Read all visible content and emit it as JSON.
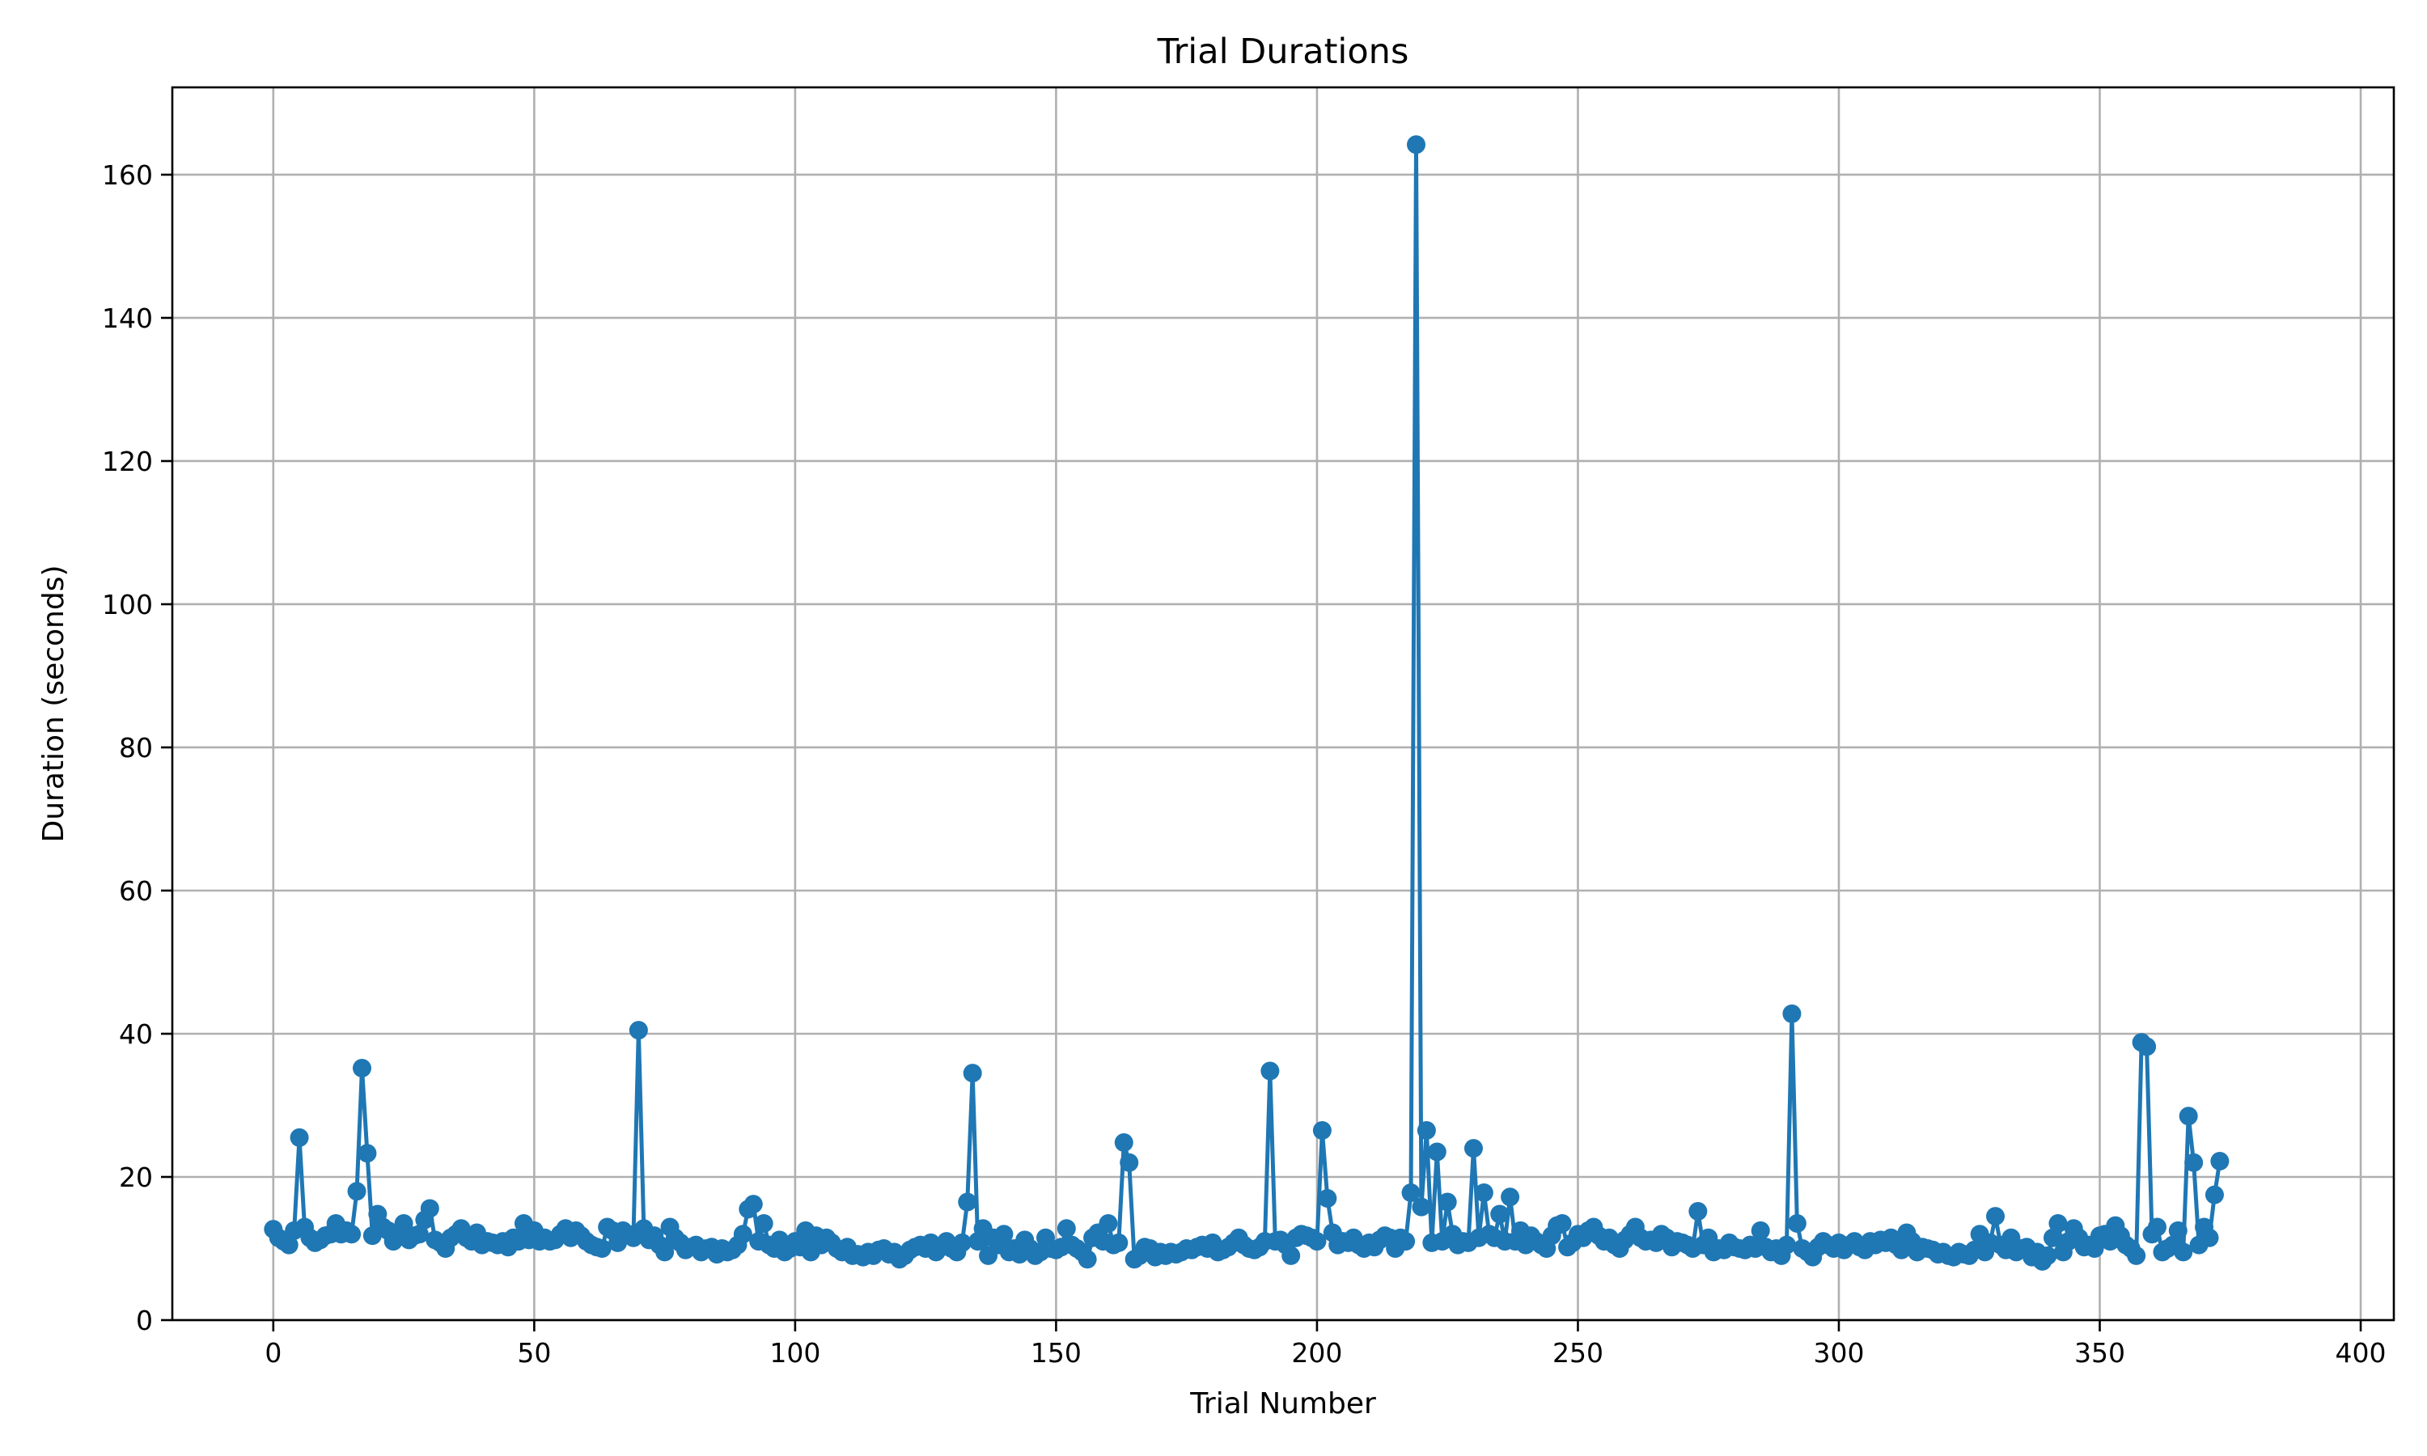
{
  "chart_data": {
    "type": "line",
    "title": "Trial Durations",
    "xlabel": "Trial Number",
    "ylabel": "Duration (seconds)",
    "xlim": [
      -19.35,
      406.35
    ],
    "ylim": [
      0,
      172.2
    ],
    "xticks": [
      0,
      50,
      100,
      150,
      200,
      250,
      300,
      350,
      400
    ],
    "yticks": [
      0,
      20,
      40,
      60,
      80,
      100,
      120,
      140,
      160
    ],
    "grid": true,
    "marker": "circle",
    "color": "#1f77b4",
    "series": [
      {
        "values": [
          12.7,
          11.5,
          11.0,
          10.5,
          12.5,
          25.5,
          13.0,
          11.5,
          10.8,
          11.2,
          11.8,
          12.0,
          13.5,
          12.0,
          12.5,
          12.0,
          18.0,
          35.2,
          23.3,
          11.8,
          14.8,
          13.0,
          12.5,
          11.0,
          12.0,
          13.5,
          11.2,
          11.8,
          12.0,
          14.0,
          15.6,
          11.2,
          10.8,
          10.0,
          11.5,
          12.0,
          12.8,
          11.5,
          11.0,
          12.2,
          10.5,
          11.0,
          10.8,
          10.5,
          11.0,
          10.2,
          11.5,
          11.0,
          13.5,
          11.2,
          12.5,
          11.0,
          11.5,
          11.0,
          11.2,
          12.0,
          12.8,
          11.5,
          12.5,
          11.8,
          11.0,
          10.5,
          10.2,
          10.0,
          13.0,
          12.5,
          10.8,
          12.5,
          12.0,
          11.5,
          40.5,
          12.8,
          11.2,
          11.8,
          10.5,
          9.5,
          13.0,
          11.5,
          10.8,
          9.8,
          10.2,
          10.5,
          9.5,
          10.0,
          10.2,
          9.2,
          10.0,
          9.5,
          9.8,
          10.5,
          12.0,
          15.5,
          16.2,
          11.0,
          13.5,
          10.5,
          10.0,
          11.2,
          9.5,
          10.0,
          11.0,
          10.2,
          12.5,
          9.5,
          11.8,
          10.5,
          11.5,
          10.8,
          10.0,
          9.5,
          10.2,
          9.0,
          9.2,
          8.8,
          9.5,
          9.0,
          9.8,
          10.0,
          9.2,
          9.5,
          8.5,
          9.0,
          9.8,
          10.2,
          10.5,
          10.0,
          10.8,
          9.5,
          10.2,
          11.0,
          10.0,
          9.5,
          10.8,
          16.5,
          34.5,
          11.0,
          12.8,
          9.0,
          11.5,
          10.5,
          12.0,
          9.5,
          10.0,
          9.2,
          11.2,
          10.0,
          9.0,
          9.5,
          11.5,
          10.0,
          9.8,
          10.2,
          12.8,
          10.5,
          10.0,
          9.5,
          8.5,
          11.5,
          12.2,
          11.0,
          13.5,
          10.5,
          10.8,
          24.8,
          22.0,
          8.5,
          9.0,
          10.2,
          10.0,
          8.8,
          9.5,
          9.0,
          9.5,
          9.2,
          9.5,
          10.0,
          9.8,
          10.2,
          10.5,
          10.0,
          10.8,
          9.5,
          9.8,
          10.2,
          10.8,
          11.5,
          10.5,
          10.0,
          9.8,
          10.2,
          11.0,
          34.8,
          11.0,
          11.2,
          10.5,
          9.0,
          11.5,
          12.0,
          11.8,
          11.5,
          11.0,
          26.5,
          17.0,
          12.2,
          10.5,
          11.0,
          10.8,
          11.5,
          10.5,
          10.0,
          10.8,
          10.2,
          11.2,
          11.8,
          11.5,
          10.0,
          11.5,
          11.0,
          17.8,
          164.2,
          15.8,
          26.5,
          10.8,
          23.5,
          11.0,
          16.5,
          12.0,
          10.5,
          11.0,
          10.8,
          24.0,
          11.5,
          17.8,
          12.0,
          11.5,
          14.8,
          11.0,
          17.2,
          11.0,
          12.5,
          10.5,
          11.8,
          11.0,
          10.5,
          10.0,
          11.8,
          13.2,
          13.5,
          10.2,
          10.8,
          12.0,
          11.5,
          12.5,
          13.0,
          11.8,
          11.0,
          11.5,
          10.5,
          10.0,
          11.2,
          12.0,
          13.0,
          11.5,
          11.0,
          11.2,
          10.8,
          12.0,
          11.5,
          10.2,
          11.0,
          10.8,
          10.5,
          10.0,
          15.2,
          10.5,
          11.5,
          9.5,
          10.0,
          9.8,
          10.8,
          10.2,
          10.0,
          9.8,
          10.5,
          10.0,
          12.5,
          10.2,
          9.5,
          10.0,
          9.0,
          10.5,
          42.8,
          13.5,
          10.0,
          9.5,
          8.8,
          10.2,
          11.0,
          10.5,
          10.0,
          10.8,
          9.8,
          10.5,
          11.0,
          10.2,
          9.8,
          11.0,
          10.5,
          11.2,
          10.8,
          11.5,
          10.5,
          9.8,
          12.2,
          11.0,
          9.5,
          10.2,
          10.0,
          9.8,
          9.2,
          9.5,
          9.0,
          8.8,
          9.5,
          9.2,
          9.0,
          9.8,
          12.0,
          9.5,
          10.8,
          14.5,
          10.5,
          9.8,
          11.5,
          9.5,
          10.0,
          10.2,
          8.8,
          9.5,
          8.2,
          9.0,
          11.5,
          13.5,
          9.5,
          11.0,
          12.8,
          11.5,
          10.2,
          10.5,
          10.0,
          11.8,
          12.0,
          11.0,
          13.2,
          11.8,
          10.5,
          10.0,
          9.0,
          38.8,
          38.2,
          12.0,
          13.0,
          9.5,
          10.0,
          10.5,
          12.5,
          9.5,
          28.5,
          22.0,
          10.5,
          13.0,
          11.5,
          17.5,
          22.2
        ]
      }
    ]
  }
}
